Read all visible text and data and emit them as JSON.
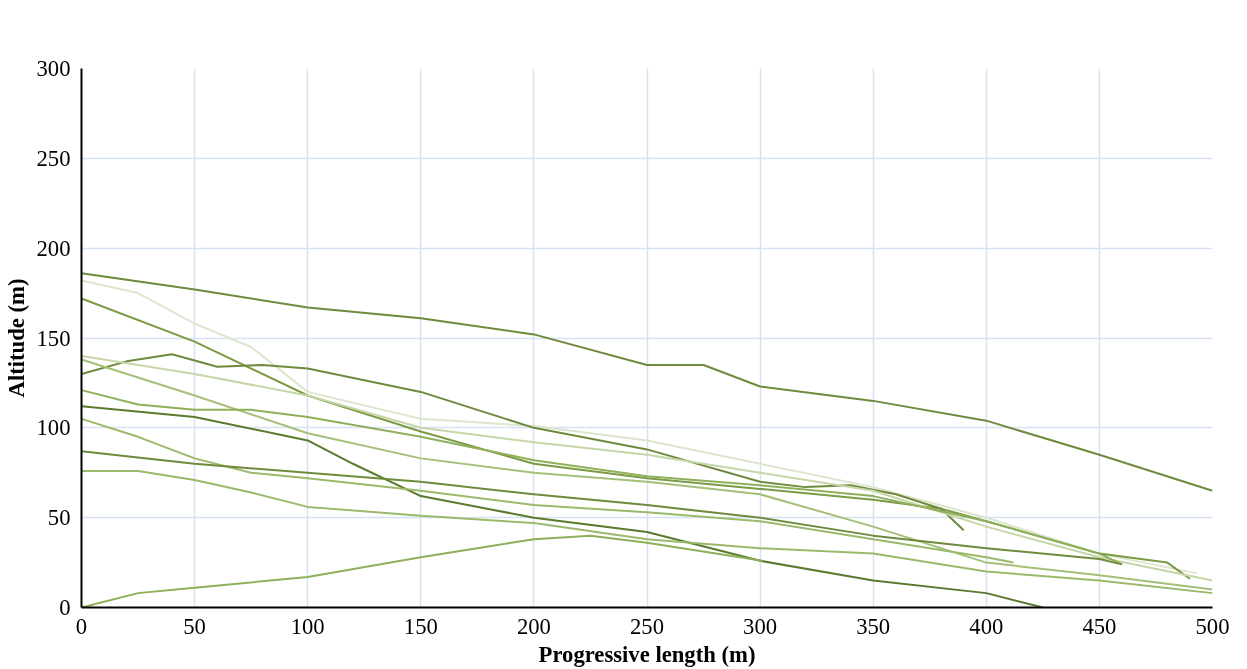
{
  "chart_data": {
    "type": "line",
    "xlabel": "Progressive length (m)",
    "ylabel": "Altitude (m)",
    "xlim": [
      0,
      500
    ],
    "ylim": [
      0,
      300
    ],
    "xticks": [
      0,
      50,
      100,
      150,
      200,
      250,
      300,
      350,
      400,
      450,
      500
    ],
    "yticks": [
      0,
      50,
      100,
      150,
      200,
      250,
      300
    ],
    "grid": true,
    "line_style": "solid",
    "marker": "none",
    "series": [
      {
        "color": "#6e8b3d",
        "x": [
          0,
          50,
          100,
          150,
          200,
          250,
          275,
          300,
          350,
          400,
          450,
          500
        ],
        "values": [
          186,
          177,
          167,
          161,
          152,
          135,
          135,
          123,
          115,
          104,
          85,
          65
        ]
      },
      {
        "color": "#dce6cc",
        "x": [
          0,
          25,
          50,
          75,
          100,
          150,
          200,
          250,
          300,
          350,
          400,
          450,
          493
        ],
        "values": [
          182,
          175,
          158,
          145,
          120,
          105,
          101,
          93,
          80,
          67,
          50,
          30,
          19
        ]
      },
      {
        "color": "#7a9a44",
        "x": [
          0,
          50,
          100,
          150,
          200,
          250,
          300,
          350,
          380,
          400,
          450,
          480,
          490
        ],
        "values": [
          172,
          148,
          118,
          98,
          80,
          72,
          66,
          60,
          55,
          48,
          30,
          25,
          16
        ]
      },
      {
        "color": "#6e8b3d",
        "x": [
          0,
          20,
          40,
          60,
          80,
          100,
          150,
          200,
          250,
          300,
          320,
          340,
          360,
          380,
          390
        ],
        "values": [
          130,
          137,
          141,
          134,
          135,
          133,
          120,
          100,
          88,
          70,
          67,
          68,
          63,
          55,
          43
        ]
      },
      {
        "color": "#c5d6a8",
        "x": [
          0,
          50,
          100,
          150,
          200,
          250,
          300,
          350,
          400,
          450,
          500
        ],
        "values": [
          140,
          130,
          118,
          100,
          92,
          85,
          75,
          65,
          45,
          28,
          15
        ]
      },
      {
        "color": "#a4bf77",
        "x": [
          0,
          50,
          100,
          150,
          200,
          250,
          300,
          350,
          400,
          450,
          500
        ],
        "values": [
          138,
          118,
          97,
          83,
          75,
          70,
          63,
          45,
          25,
          18,
          10
        ]
      },
      {
        "color": "#8fb05a",
        "x": [
          0,
          25,
          50,
          75,
          100,
          150,
          200,
          250,
          300,
          350,
          400,
          450,
          460
        ],
        "values": [
          121,
          113,
          110,
          110,
          106,
          95,
          82,
          73,
          68,
          62,
          48,
          30,
          24
        ]
      },
      {
        "color": "#5a7a2e",
        "x": [
          0,
          50,
          100,
          120,
          150,
          200,
          250,
          300,
          350,
          400,
          425
        ],
        "values": [
          112,
          106,
          93,
          80,
          62,
          50,
          42,
          26,
          15,
          8,
          0
        ]
      },
      {
        "color": "#9ab96a",
        "x": [
          0,
          25,
          50,
          75,
          100,
          150,
          200,
          250,
          300,
          350,
          400,
          412
        ],
        "values": [
          105,
          95,
          83,
          75,
          72,
          65,
          57,
          53,
          48,
          38,
          28,
          25
        ]
      },
      {
        "color": "#6e8b3d",
        "x": [
          0,
          50,
          100,
          150,
          200,
          250,
          300,
          350,
          400,
          450,
          460
        ],
        "values": [
          87,
          80,
          75,
          70,
          63,
          57,
          50,
          40,
          33,
          27,
          24
        ]
      },
      {
        "color": "#9ab96a",
        "x": [
          0,
          25,
          50,
          75,
          100,
          150,
          200,
          250,
          300,
          350,
          400,
          450,
          500
        ],
        "values": [
          76,
          76,
          71,
          64,
          56,
          51,
          47,
          38,
          33,
          30,
          20,
          15,
          8
        ]
      },
      {
        "color": "#8fb05a",
        "x": [
          0,
          25,
          50,
          100,
          150,
          200,
          225,
          250,
          301
        ],
        "values": [
          0,
          8,
          11,
          17,
          28,
          38,
          40,
          36,
          26
        ]
      }
    ]
  }
}
